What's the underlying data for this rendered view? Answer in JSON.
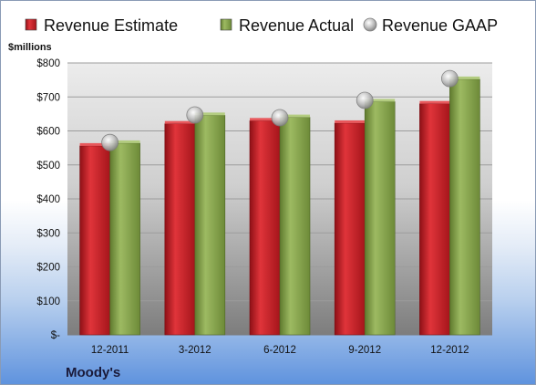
{
  "chart_data": {
    "type": "bar",
    "unit_label": "$millions",
    "company": "Moody's",
    "categories": [
      "12-2011",
      "3-2012",
      "6-2012",
      "9-2012",
      "12-2012"
    ],
    "series": [
      {
        "name": "Revenue Estimate",
        "kind": "bar",
        "color": "#cc1f26",
        "values": [
          556,
          621,
          630,
          623,
          680
        ]
      },
      {
        "name": "Revenue Actual",
        "kind": "bar",
        "color": "#8aa64e",
        "values": [
          564,
          646,
          640,
          686,
          752
        ]
      },
      {
        "name": "Revenue GAAP",
        "kind": "point",
        "color": "#b5b5b5",
        "values": [
          566,
          647,
          639,
          690,
          754
        ]
      }
    ],
    "y_ticks": [
      "$-",
      "$100",
      "$200",
      "$300",
      "$400",
      "$500",
      "$600",
      "$700",
      "$800"
    ],
    "ylim": [
      0,
      800
    ],
    "grid": true,
    "legend_position": "top"
  }
}
